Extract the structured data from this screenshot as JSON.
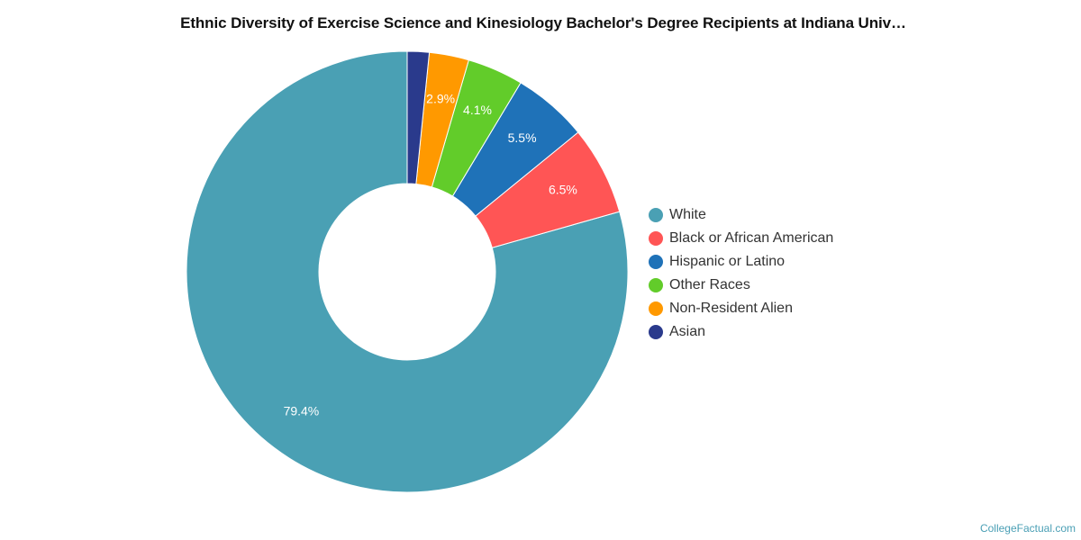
{
  "chart_data": {
    "type": "pie",
    "title": "Ethnic Diversity of Exercise Science and Kinesiology Bachelor's Degree Recipients at Indiana Univ…",
    "donut": true,
    "legend_position": "right",
    "slices": [
      {
        "label": "White",
        "value": 79.4,
        "display": "79.4%",
        "color": "#4aa0b4"
      },
      {
        "label": "Black or African American",
        "value": 6.5,
        "display": "6.5%",
        "color": "#ff5555"
      },
      {
        "label": "Hispanic or Latino",
        "value": 5.5,
        "display": "5.5%",
        "color": "#1f72b8"
      },
      {
        "label": "Other Races",
        "value": 4.1,
        "display": "4.1%",
        "color": "#62cc2a"
      },
      {
        "label": "Non-Resident Alien",
        "value": 2.9,
        "display": "2.9%",
        "color": "#ff9900"
      },
      {
        "label": "Asian",
        "value": 1.6,
        "display": "",
        "color": "#2a3a8c"
      }
    ]
  },
  "credit": "CollegeFactual.com"
}
